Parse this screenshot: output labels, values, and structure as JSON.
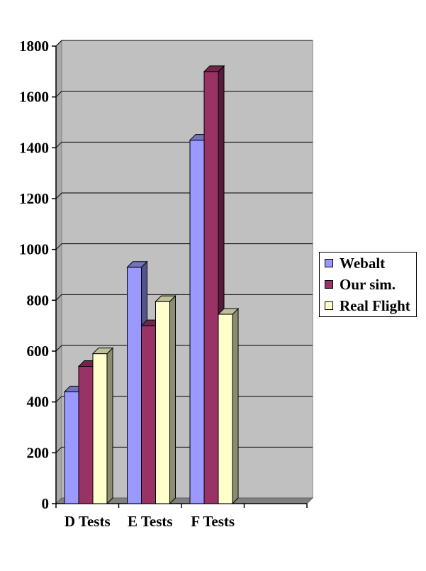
{
  "chart_data": {
    "type": "bar",
    "title": "",
    "xlabel": "",
    "ylabel": "",
    "categories": [
      "D Tests",
      "E Tests",
      "F Tests"
    ],
    "series": [
      {
        "name": "Webalt",
        "values": [
          440,
          930,
          1430
        ],
        "color": "#9999FF"
      },
      {
        "name": "Our sim.",
        "values": [
          540,
          700,
          1700
        ],
        "color": "#993366"
      },
      {
        "name": "Real Flight",
        "values": [
          590,
          795,
          745
        ],
        "color": "#FFFFCC"
      }
    ],
    "ylim": [
      0,
      1800
    ],
    "yticks": [
      "0",
      "200",
      "400",
      "600",
      "800",
      "1000",
      "1200",
      "1400",
      "1600",
      "1800"
    ],
    "grid": true,
    "three_d": true,
    "plot_background": "#C0C0C0",
    "legend_position": "right"
  }
}
